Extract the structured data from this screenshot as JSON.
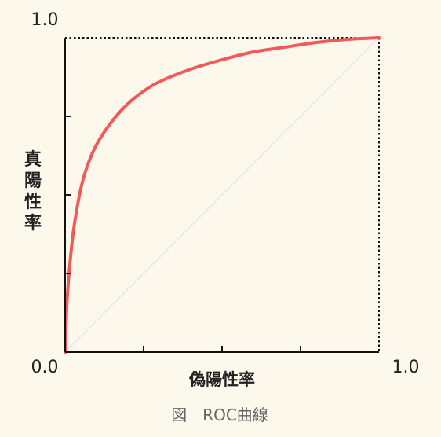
{
  "chart_data": {
    "type": "line",
    "xlabel": "偽陽性率",
    "ylabel": "真陽性率",
    "caption": "図　ROC曲線",
    "xlim": [
      0.0,
      1.0
    ],
    "ylim": [
      0.0,
      1.0
    ],
    "x_tick_labels": {
      "min": "0.0",
      "max": "1.0"
    },
    "y_tick_labels": {
      "min": "0.0",
      "max": "1.0"
    },
    "grid": false,
    "series": [
      {
        "role": "roc-curve",
        "color": "#f05a5a",
        "x": [
          0.0,
          0.005,
          0.01,
          0.02,
          0.03,
          0.05,
          0.07,
          0.1,
          0.15,
          0.2,
          0.25,
          0.3,
          0.4,
          0.5,
          0.6,
          0.7,
          0.8,
          0.9,
          1.0
        ],
        "y": [
          0.0,
          0.14,
          0.22,
          0.33,
          0.41,
          0.52,
          0.59,
          0.66,
          0.735,
          0.79,
          0.83,
          0.86,
          0.9,
          0.93,
          0.955,
          0.97,
          0.985,
          0.995,
          1.0
        ]
      },
      {
        "role": "diagonal",
        "color": "#e4e4f0",
        "x": [
          0.0,
          1.0
        ],
        "y": [
          0.0,
          1.0
        ]
      }
    ]
  }
}
